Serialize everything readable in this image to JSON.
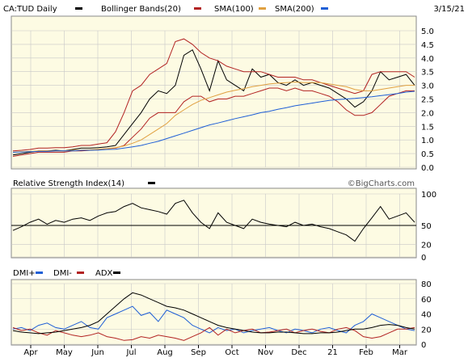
{
  "header": {
    "symbol_label": "CA:TUD Daily",
    "legend": [
      {
        "label": "Bollinger Bands(20)",
        "color": "#b22222"
      },
      {
        "label": "SMA(100)",
        "color": "#b22222"
      },
      {
        "label": "SMA(200)",
        "color": "#1f5fd6"
      }
    ],
    "date": "3/15/21"
  },
  "colors": {
    "background": "#fdfbe3",
    "grid": "#c8c8c8",
    "price": "#000000",
    "bollinger": "#b22222",
    "sma100": "#e0a040",
    "sma200": "#1f5fd6",
    "dmi_plus": "#1f5fd6",
    "dmi_minus": "#b22222",
    "adx": "#000000"
  },
  "watermark": "©BigCharts.com",
  "chart_data": [
    {
      "type": "line",
      "title": "CA:TUD Daily",
      "x_ticks": [
        "Apr",
        "May",
        "Jun",
        "Jul",
        "Aug",
        "Sep",
        "Oct",
        "Nov",
        "Dec",
        "21",
        "Feb",
        "Mar"
      ],
      "ylim": [
        0,
        5
      ],
      "y_ticks": [
        "5.0",
        "4.5",
        "4.0",
        "3.5",
        "3.0",
        "2.5",
        "2.0",
        "1.5",
        "1.0",
        "0.5",
        "0.0"
      ],
      "grid": true,
      "series": [
        {
          "name": "CA:TUD Daily",
          "values": [
            0.45,
            0.5,
            0.55,
            0.6,
            0.6,
            0.62,
            0.6,
            0.65,
            0.7,
            0.7,
            0.72,
            0.75,
            0.8,
            1.2,
            1.6,
            2.0,
            2.5,
            2.8,
            2.7,
            3.0,
            4.1,
            4.3,
            3.6,
            2.8,
            3.9,
            3.2,
            3.0,
            2.8,
            3.6,
            3.3,
            3.4,
            3.1,
            3.0,
            3.2,
            3.0,
            3.1,
            3.0,
            2.9,
            2.7,
            2.5,
            2.2,
            2.4,
            2.8,
            3.5,
            3.2,
            3.3,
            3.4,
            3.0
          ]
        },
        {
          "name": "Bollinger Bands(20) upper",
          "values": [
            0.6,
            0.62,
            0.65,
            0.7,
            0.7,
            0.72,
            0.72,
            0.75,
            0.8,
            0.8,
            0.85,
            0.9,
            1.3,
            2.0,
            2.8,
            3.0,
            3.4,
            3.6,
            3.8,
            4.6,
            4.7,
            4.5,
            4.2,
            4.0,
            3.9,
            3.7,
            3.6,
            3.5,
            3.5,
            3.5,
            3.4,
            3.3,
            3.3,
            3.3,
            3.2,
            3.2,
            3.1,
            3.0,
            2.9,
            2.8,
            2.7,
            2.8,
            3.4,
            3.5,
            3.5,
            3.5,
            3.5,
            3.3
          ]
        },
        {
          "name": "Bollinger Bands(20) lower",
          "values": [
            0.4,
            0.45,
            0.5,
            0.55,
            0.55,
            0.55,
            0.55,
            0.6,
            0.6,
            0.62,
            0.65,
            0.68,
            0.7,
            0.8,
            1.1,
            1.4,
            1.8,
            2.0,
            2.0,
            2.0,
            2.4,
            2.6,
            2.6,
            2.4,
            2.5,
            2.5,
            2.6,
            2.6,
            2.7,
            2.8,
            2.9,
            2.9,
            2.8,
            2.9,
            2.8,
            2.8,
            2.7,
            2.6,
            2.4,
            2.1,
            1.9,
            1.9,
            2.0,
            2.3,
            2.6,
            2.7,
            2.8,
            2.8
          ]
        },
        {
          "name": "SMA(100)",
          "values": [
            0.55,
            0.57,
            0.58,
            0.6,
            0.6,
            0.6,
            0.6,
            0.62,
            0.63,
            0.64,
            0.66,
            0.68,
            0.72,
            0.78,
            0.88,
            1.0,
            1.2,
            1.4,
            1.6,
            1.9,
            2.1,
            2.3,
            2.45,
            2.55,
            2.65,
            2.75,
            2.82,
            2.88,
            2.95,
            3.0,
            3.05,
            3.08,
            3.1,
            3.12,
            3.1,
            3.1,
            3.1,
            3.05,
            3.0,
            2.95,
            2.85,
            2.8,
            2.8,
            2.85,
            2.9,
            2.95,
            3.0,
            3.0
          ]
        },
        {
          "name": "SMA(200)",
          "values": [
            0.55,
            0.56,
            0.57,
            0.58,
            0.58,
            0.6,
            0.6,
            0.6,
            0.62,
            0.62,
            0.63,
            0.65,
            0.66,
            0.7,
            0.75,
            0.8,
            0.88,
            0.95,
            1.05,
            1.15,
            1.25,
            1.35,
            1.45,
            1.55,
            1.62,
            1.7,
            1.78,
            1.85,
            1.92,
            2.0,
            2.05,
            2.12,
            2.18,
            2.25,
            2.3,
            2.35,
            2.4,
            2.45,
            2.48,
            2.5,
            2.52,
            2.55,
            2.58,
            2.62,
            2.66,
            2.7,
            2.75,
            2.78
          ]
        }
      ]
    },
    {
      "type": "line",
      "title": "Relative Strength Index(14)",
      "ylim": [
        0,
        100
      ],
      "y_ticks": [
        "100",
        "50",
        "20",
        "0"
      ],
      "reference_line": 50,
      "series": [
        {
          "name": "Relative Strength Index(14)",
          "values": [
            42,
            48,
            55,
            60,
            52,
            58,
            55,
            60,
            62,
            58,
            65,
            70,
            72,
            80,
            85,
            78,
            75,
            72,
            68,
            85,
            90,
            70,
            55,
            45,
            70,
            55,
            50,
            45,
            60,
            55,
            52,
            50,
            48,
            55,
            50,
            52,
            48,
            45,
            40,
            35,
            25,
            45,
            62,
            80,
            60,
            65,
            70,
            55
          ]
        }
      ]
    },
    {
      "type": "line",
      "title": "DMI+ DMI- ADX",
      "ylim": [
        0,
        80
      ],
      "y_ticks": [
        "80",
        "60",
        "40",
        "20",
        "0"
      ],
      "series": [
        {
          "name": "DMI+",
          "values": [
            20,
            22,
            18,
            25,
            28,
            22,
            20,
            25,
            30,
            22,
            20,
            35,
            40,
            45,
            50,
            38,
            42,
            30,
            45,
            40,
            35,
            25,
            20,
            15,
            22,
            18,
            20,
            15,
            18,
            20,
            22,
            18,
            15,
            20,
            18,
            15,
            20,
            22,
            18,
            15,
            25,
            30,
            40,
            35,
            30,
            25,
            20,
            18
          ]
        },
        {
          "name": "DMI-",
          "values": [
            22,
            18,
            20,
            15,
            12,
            18,
            15,
            12,
            10,
            12,
            15,
            10,
            8,
            5,
            6,
            10,
            8,
            12,
            10,
            8,
            5,
            10,
            15,
            22,
            12,
            20,
            15,
            18,
            20,
            15,
            16,
            18,
            20,
            15,
            18,
            20,
            17,
            15,
            20,
            22,
            18,
            10,
            8,
            10,
            15,
            20,
            20,
            22
          ]
        },
        {
          "name": "ADX",
          "values": [
            18,
            16,
            15,
            14,
            15,
            16,
            18,
            20,
            22,
            25,
            30,
            40,
            50,
            60,
            68,
            65,
            60,
            55,
            50,
            48,
            45,
            40,
            35,
            30,
            25,
            22,
            20,
            18,
            16,
            15,
            15,
            16,
            16,
            15,
            14,
            14,
            15,
            15,
            16,
            18,
            20,
            20,
            22,
            25,
            26,
            25,
            22,
            20
          ]
        }
      ]
    }
  ]
}
